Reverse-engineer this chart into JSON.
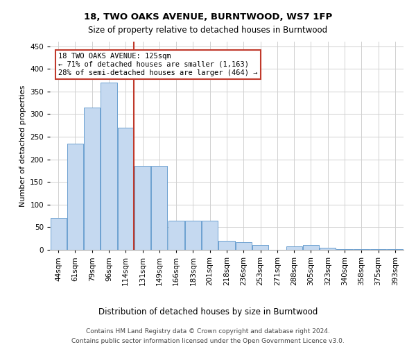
{
  "title": "18, TWO OAKS AVENUE, BURNTWOOD, WS7 1FP",
  "subtitle": "Size of property relative to detached houses in Burntwood",
  "xlabel": "Distribution of detached houses by size in Burntwood",
  "ylabel": "Number of detached properties",
  "footer_line1": "Contains HM Land Registry data © Crown copyright and database right 2024.",
  "footer_line2": "Contains public sector information licensed under the Open Government Licence v3.0.",
  "categories": [
    "44sqm",
    "61sqm",
    "79sqm",
    "96sqm",
    "114sqm",
    "131sqm",
    "149sqm",
    "166sqm",
    "183sqm",
    "201sqm",
    "218sqm",
    "236sqm",
    "253sqm",
    "271sqm",
    "288sqm",
    "305sqm",
    "323sqm",
    "340sqm",
    "358sqm",
    "375sqm",
    "393sqm"
  ],
  "values": [
    70,
    235,
    315,
    370,
    270,
    185,
    185,
    65,
    65,
    65,
    20,
    17,
    10,
    0,
    8,
    10,
    5,
    2,
    2,
    2,
    2
  ],
  "bar_color": "#c5d9f0",
  "bar_edge_color": "#6ca0d0",
  "red_line_color": "#c0392b",
  "annotation_box_color": "#c0392b",
  "annotation_text_line1": "18 TWO OAKS AVENUE: 125sqm",
  "annotation_text_line2": "← 71% of detached houses are smaller (1,163)",
  "annotation_text_line3": "28% of semi-detached houses are larger (464) →",
  "ylim": [
    0,
    460
  ],
  "yticks": [
    0,
    50,
    100,
    150,
    200,
    250,
    300,
    350,
    400,
    450
  ],
  "red_line_x": 4.47,
  "background_color": "#ffffff",
  "grid_color": "#d0d0d0",
  "title_fontsize": 9.5,
  "subtitle_fontsize": 8.5,
  "xlabel_fontsize": 8.5,
  "ylabel_fontsize": 8,
  "tick_fontsize": 7.5,
  "annotation_fontsize": 7.5,
  "footer_fontsize": 6.5
}
